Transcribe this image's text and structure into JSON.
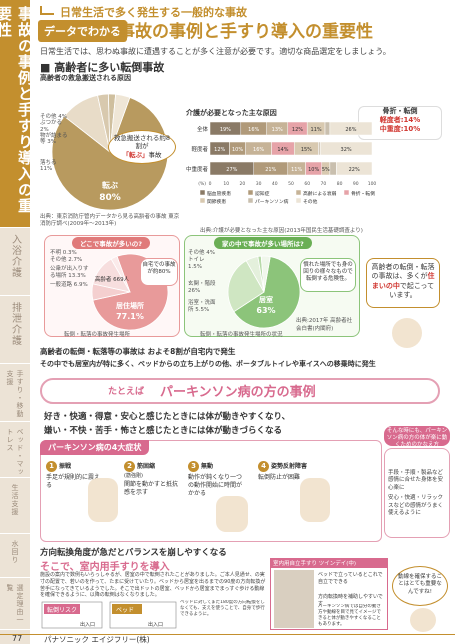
{
  "side_tabs": [
    {
      "label": "事故の事例と手すり導入の重要性",
      "active": true
    },
    {
      "label": "入浴介護",
      "active": false
    },
    {
      "label": "排泄介護",
      "active": false
    },
    {
      "label": "手すり・移動支援",
      "active": false,
      "small": true
    },
    {
      "label": "ベッド・マットレス",
      "active": false,
      "small": true
    },
    {
      "label": "生活支援",
      "active": false,
      "small": true
    },
    {
      "label": "水回り",
      "active": false,
      "small": true
    },
    {
      "label": "選定理由一覧",
      "active": false,
      "small": true
    }
  ],
  "header": {
    "top_label": "日常生活で多く発生する一般的な事故",
    "badge": "データでわかる",
    "title": "事故の事例と手すり導入の重要性",
    "subtitle": "日常生活では、思わぬ事故に遭遇することが多く注意が必要です。適切な商品選定をしましょう。"
  },
  "section1": {
    "heading": "■ 高齢者に多い転倒事故",
    "pie_title": "高齢者の救急搬送される原因",
    "pie_note": "救急搬送される約8割が",
    "pie_note_em": "「転ぶ」",
    "pie_note_end": "事故",
    "pie_source": "出典：東京消防庁管内データから見る高齢者の事故 東京消防庁調べ(2009年〜2013年)",
    "bar_title": "介護が必要となった主な原因",
    "bar_callout_1": "骨折・転倒",
    "bar_callout_2": "軽度者:14%",
    "bar_callout_3": "中重度:10%",
    "bar_source": "出典:介護が必要となった主な原因(2013年国民生活基礎調査より)"
  },
  "chart_data": [
    {
      "type": "pie",
      "title": "高齢者の救急搬送される原因",
      "slices": [
        {
          "label": "転ぶ",
          "value": 80,
          "display": "80%",
          "color": "#b89a5f"
        },
        {
          "label": "落ちる",
          "value": 11,
          "display": "11%",
          "color": "#e8dcc8"
        },
        {
          "label": "物が詰まる等",
          "value": 3,
          "display": "3%",
          "color": "#d8c9ae"
        },
        {
          "label": "ぶつかる",
          "value": 2,
          "display": "2%",
          "color": "#cfbf9e"
        },
        {
          "label": "その他",
          "value": 4,
          "display": "4%",
          "color": "#efe6d6"
        }
      ]
    },
    {
      "type": "bar",
      "title": "介護が必要となった主な原因",
      "orientation": "horizontal-stacked",
      "categories": [
        "全体",
        "軽度者",
        "中重度者"
      ],
      "xlim": [
        0,
        100
      ],
      "x_ticks": [
        "0",
        "10",
        "20",
        "30",
        "40",
        "50",
        "60",
        "70",
        "80",
        "90",
        "100"
      ],
      "x_unit": "(%)",
      "series": [
        {
          "name": "脳血管疾患",
          "color": "#8a7a66",
          "values": [
            19,
            12,
            27
          ]
        },
        {
          "name": "認知症",
          "color": "#b09a7a",
          "values": [
            16,
            10,
            21
          ]
        },
        {
          "name": "高齢による衰弱",
          "color": "#c6b397",
          "values": [
            13,
            16,
            11
          ]
        },
        {
          "name": "骨折・転倒",
          "color": "#e6a3a8",
          "values": [
            12,
            14,
            10
          ]
        },
        {
          "name": "関節疾患",
          "color": "#d8c9b0",
          "values": [
            11,
            15,
            5
          ]
        },
        {
          "name": "パーキンソン病",
          "color": "#c9bfae",
          "values": [
            3,
            1,
            4
          ]
        },
        {
          "name": "その他",
          "color": "#ece4d6",
          "values": [
            26,
            32,
            22
          ]
        }
      ],
      "legend": [
        "脳血管疾患",
        "認知症",
        "高齢による衰弱",
        "骨折・転倒",
        "関節疾患",
        "パーキンソン病",
        "その他"
      ]
    },
    {
      "type": "pie",
      "title": "どこで事故が多いの?",
      "slices": [
        {
          "label": "居住場所",
          "value": 77.1,
          "display": "77.1%",
          "color": "#e89a9a"
        },
        {
          "label": "一般道路",
          "value": 6.9,
          "display": "6.9%",
          "color": "#f4cfcf"
        },
        {
          "label": "公衆が出入りする場所",
          "value": 13.3,
          "display": "13.3%",
          "color": "#f7dede"
        },
        {
          "label": "その他",
          "value": 2.7,
          "display": "2.7%",
          "color": "#fbeaea"
        }
      ],
      "center_label": "高齢者 669人",
      "note": "自宅での事故が約80%",
      "note_em": "約80%",
      "unknown": "不明 0.3%",
      "source": "転倒・転落の事故発生場所"
    },
    {
      "type": "pie",
      "title": "家の中で事故が多い場所は?",
      "slices": [
        {
          "label": "居室",
          "value": 63,
          "display": "63%",
          "color": "#8cc47a"
        },
        {
          "label": "玄関・階段",
          "value": 26,
          "display": "26%",
          "color": "#cfe6c2"
        },
        {
          "label": "浴室・洗面所",
          "value": 5.5,
          "display": "5.5%",
          "color": "#e4f0dc"
        },
        {
          "label": "トイレ",
          "value": 1.5,
          "display": "1.5%",
          "color": "#b7d9a8"
        },
        {
          "label": "その他",
          "value": 4,
          "display": "4%",
          "color": "#f0f7eb"
        }
      ],
      "note": "慣れた場所でも身の回りの様々なもので転倒する危険性。",
      "source": "転倒・転落の事故発生場所の状況",
      "source2": "出典:2017年 高齢者社会白書(内閣府)"
    }
  ],
  "callout_right": {
    "pre": "高齢者の転倒・転落の事故は、多くが",
    "em": "住まいの中",
    "post": "で起こっています。"
  },
  "summary": {
    "line1": "高齢者の転倒・転落等の事故は およそ8割が自宅内で発生",
    "line2": "その中でも居室内が特に多く、ベッドからの立ち上がりの他、ポータブルトイレや車イスへの移乗時に発生"
  },
  "parkinson": {
    "prefix": "たとえば",
    "title": "パーキンソン病の方の事例",
    "desc1": "好き・快適・得意・安心と感じたときには体が動きやすくなり、",
    "desc2": "嫌い・不快・苦手・怖さと感じたときには体が動きづらくなる",
    "symptoms_title": "パーキンソン病の4大症状",
    "steps": [
      {
        "num": "1",
        "name": "振戦",
        "text": "手足が規則的に震える"
      },
      {
        "num": "2",
        "name": "筋固縮",
        "note": "(筋強剛)",
        "text": "関節を動かすと抵抗感を示す"
      },
      {
        "num": "3",
        "name": "無動",
        "text": "動作が鈍くなり一つの動作開始に時間がかかる"
      },
      {
        "num": "4",
        "name": "姿勢反射障害",
        "text": "転倒防止が困難"
      }
    ],
    "bubble_title": "そんな時にも、",
    "bubble_em": "パーキンソン病の方の体が楽に動くためのかなえ方",
    "bubble_items": [
      "手段・手順・製品など感情に合せた身体を安心楽に",
      "安心・快適・リラックスなどの感情がうまく使えるように"
    ]
  },
  "bottom": {
    "title1": "方向転換角度が急だとバランスを崩しやすくなる",
    "title2": "そこで、室内用手すりを導入",
    "body": "施設の案内で数例もいらっしゃるが、居室の中で転倒されたことがありました。ご本人見通せ、の実寸の配置で、若いのを作って、たまに受けていたり。ベッドから居室を出るまでの90度の方向転換が苦手になってきているようでした。そこで出ドットの居室、ベッドから居室までまっすぐ歩ける動線を確保できるように、以降の転倒はなくなりました。",
    "diagram_label1": "転倒リスク",
    "diagram_label2": "ベッド",
    "diagram_label3": "ベッド",
    "diagram_label4": "出入口",
    "diagram_label5": "出入口",
    "diagram_caption": "ベッドに対してまた180度の方向転換をしなくても、支えを使うことで、自身で歩行できるように。",
    "photo_label": "室内用自立手すり ツインデイ(中)",
    "photo_cap1": "ベッドで立っているとこれで自立でできる",
    "photo_cap2": "方向転換時を補助しやすいです",
    "photo_cap3": "パーキンソン病では自分の動き方や動線を目で見てイメージできると体が動きやすくなることもあります。",
    "bubble_final": "動線を確保することはとても重要なんですね!"
  },
  "footer": {
    "page": "77",
    "company": "パナソニック エイジフリー(株)"
  }
}
